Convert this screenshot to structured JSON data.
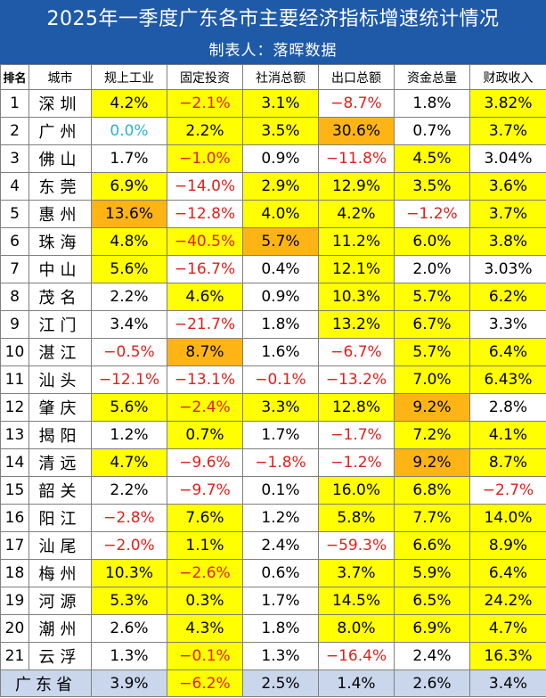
{
  "title": "2025年一季度广东各市主要经济指标增速统计情况",
  "subtitle": "制表人：落晖数据",
  "colors": {
    "banner": "#1f5aa8",
    "highlight_yellow": "#ffff00",
    "highlight_orange": "#ffb415",
    "negative_text": "#e0201b",
    "zero_text": "#2bb3cc",
    "province_row": "#c9d6ec"
  },
  "headers": [
    "排名",
    "城市",
    "规上工业",
    "固定投资",
    "社消总额",
    "出口总额",
    "资金总量",
    "财政收入"
  ],
  "rows": [
    {
      "rank": "1",
      "city": "深圳",
      "cells": [
        {
          "v": "4.2%",
          "bg": "y"
        },
        {
          "v": "−2.1%",
          "bg": "y",
          "neg": true
        },
        {
          "v": "3.1%",
          "bg": "y"
        },
        {
          "v": "−8.7%",
          "bg": "",
          "neg": true
        },
        {
          "v": "1.8%",
          "bg": ""
        },
        {
          "v": "3.82%",
          "bg": "y"
        }
      ]
    },
    {
      "rank": "2",
      "city": "广州",
      "cells": [
        {
          "v": "0.0%",
          "bg": "",
          "cyan": true
        },
        {
          "v": "2.2%",
          "bg": "y"
        },
        {
          "v": "3.5%",
          "bg": "y"
        },
        {
          "v": "30.6%",
          "bg": "o"
        },
        {
          "v": "0.7%",
          "bg": ""
        },
        {
          "v": "3.7%",
          "bg": "y"
        }
      ]
    },
    {
      "rank": "3",
      "city": "佛山",
      "cells": [
        {
          "v": "1.7%",
          "bg": ""
        },
        {
          "v": "−1.0%",
          "bg": "y",
          "neg": true
        },
        {
          "v": "0.9%",
          "bg": ""
        },
        {
          "v": "−11.8%",
          "bg": "",
          "neg": true
        },
        {
          "v": "4.5%",
          "bg": "y"
        },
        {
          "v": "3.04%",
          "bg": ""
        }
      ]
    },
    {
      "rank": "4",
      "city": "东莞",
      "cells": [
        {
          "v": "6.9%",
          "bg": "y"
        },
        {
          "v": "−14.0%",
          "bg": "",
          "neg": true
        },
        {
          "v": "2.9%",
          "bg": "y"
        },
        {
          "v": "12.9%",
          "bg": "y"
        },
        {
          "v": "3.5%",
          "bg": "y"
        },
        {
          "v": "3.6%",
          "bg": "y"
        }
      ]
    },
    {
      "rank": "5",
      "city": "惠州",
      "cells": [
        {
          "v": "13.6%",
          "bg": "o"
        },
        {
          "v": "−12.8%",
          "bg": "",
          "neg": true
        },
        {
          "v": "4.0%",
          "bg": "y"
        },
        {
          "v": "4.2%",
          "bg": "y"
        },
        {
          "v": "−1.2%",
          "bg": "",
          "neg": true
        },
        {
          "v": "3.7%",
          "bg": "y"
        }
      ]
    },
    {
      "rank": "6",
      "city": "珠海",
      "cells": [
        {
          "v": "4.8%",
          "bg": "y"
        },
        {
          "v": "−40.5%",
          "bg": "y",
          "neg": true
        },
        {
          "v": "5.7%",
          "bg": "o"
        },
        {
          "v": "11.2%",
          "bg": "y"
        },
        {
          "v": "6.0%",
          "bg": "y"
        },
        {
          "v": "3.8%",
          "bg": "y"
        }
      ]
    },
    {
      "rank": "7",
      "city": "中山",
      "cells": [
        {
          "v": "5.6%",
          "bg": "y"
        },
        {
          "v": "−16.7%",
          "bg": "",
          "neg": true
        },
        {
          "v": "0.4%",
          "bg": ""
        },
        {
          "v": "12.1%",
          "bg": "y"
        },
        {
          "v": "2.0%",
          "bg": ""
        },
        {
          "v": "3.03%",
          "bg": ""
        }
      ]
    },
    {
      "rank": "8",
      "city": "茂名",
      "cells": [
        {
          "v": "2.2%",
          "bg": ""
        },
        {
          "v": "4.6%",
          "bg": "y"
        },
        {
          "v": "0.9%",
          "bg": ""
        },
        {
          "v": "10.3%",
          "bg": "y"
        },
        {
          "v": "5.7%",
          "bg": "y"
        },
        {
          "v": "6.2%",
          "bg": "y"
        }
      ]
    },
    {
      "rank": "9",
      "city": "江门",
      "cells": [
        {
          "v": "3.4%",
          "bg": ""
        },
        {
          "v": "−21.7%",
          "bg": "",
          "neg": true
        },
        {
          "v": "1.8%",
          "bg": ""
        },
        {
          "v": "13.2%",
          "bg": "y"
        },
        {
          "v": "6.7%",
          "bg": "y"
        },
        {
          "v": "3.3%",
          "bg": ""
        }
      ]
    },
    {
      "rank": "10",
      "city": "湛江",
      "cells": [
        {
          "v": "−0.5%",
          "bg": "",
          "neg": true
        },
        {
          "v": "8.7%",
          "bg": "o"
        },
        {
          "v": "1.6%",
          "bg": ""
        },
        {
          "v": "−6.7%",
          "bg": "",
          "neg": true
        },
        {
          "v": "5.7%",
          "bg": "y"
        },
        {
          "v": "6.4%",
          "bg": "y"
        }
      ]
    },
    {
      "rank": "11",
      "city": "汕头",
      "cells": [
        {
          "v": "−12.1%",
          "bg": "",
          "neg": true
        },
        {
          "v": "−13.1%",
          "bg": "",
          "neg": true
        },
        {
          "v": "−0.1%",
          "bg": "",
          "neg": true
        },
        {
          "v": "−13.2%",
          "bg": "",
          "neg": true
        },
        {
          "v": "7.0%",
          "bg": "y"
        },
        {
          "v": "6.43%",
          "bg": "y"
        }
      ]
    },
    {
      "rank": "12",
      "city": "肇庆",
      "cells": [
        {
          "v": "5.6%",
          "bg": "y"
        },
        {
          "v": "−2.4%",
          "bg": "y",
          "neg": true
        },
        {
          "v": "3.3%",
          "bg": "y"
        },
        {
          "v": "12.8%",
          "bg": "y"
        },
        {
          "v": "9.2%",
          "bg": "o"
        },
        {
          "v": "2.8%",
          "bg": ""
        }
      ]
    },
    {
      "rank": "13",
      "city": "揭阳",
      "cells": [
        {
          "v": "1.2%",
          "bg": ""
        },
        {
          "v": "0.7%",
          "bg": "y"
        },
        {
          "v": "1.7%",
          "bg": ""
        },
        {
          "v": "−1.7%",
          "bg": "",
          "neg": true
        },
        {
          "v": "7.2%",
          "bg": "y"
        },
        {
          "v": "4.1%",
          "bg": "y"
        }
      ]
    },
    {
      "rank": "14",
      "city": "清远",
      "cells": [
        {
          "v": "4.7%",
          "bg": "y"
        },
        {
          "v": "−9.6%",
          "bg": "",
          "neg": true
        },
        {
          "v": "−1.8%",
          "bg": "",
          "neg": true
        },
        {
          "v": "−1.2%",
          "bg": "",
          "neg": true
        },
        {
          "v": "9.2%",
          "bg": "o"
        },
        {
          "v": "8.7%",
          "bg": "y"
        }
      ]
    },
    {
      "rank": "15",
      "city": "韶关",
      "cells": [
        {
          "v": "2.2%",
          "bg": ""
        },
        {
          "v": "−9.7%",
          "bg": "",
          "neg": true
        },
        {
          "v": "0.1%",
          "bg": ""
        },
        {
          "v": "16.0%",
          "bg": "y"
        },
        {
          "v": "6.8%",
          "bg": "y"
        },
        {
          "v": "−2.7%",
          "bg": "",
          "neg": true
        }
      ]
    },
    {
      "rank": "16",
      "city": "阳江",
      "cells": [
        {
          "v": "−2.8%",
          "bg": "",
          "neg": true
        },
        {
          "v": "7.6%",
          "bg": "y"
        },
        {
          "v": "1.2%",
          "bg": ""
        },
        {
          "v": "5.8%",
          "bg": "y"
        },
        {
          "v": "7.7%",
          "bg": "y"
        },
        {
          "v": "14.0%",
          "bg": "y"
        }
      ]
    },
    {
      "rank": "17",
      "city": "汕尾",
      "cells": [
        {
          "v": "−2.0%",
          "bg": "",
          "neg": true
        },
        {
          "v": "1.1%",
          "bg": "y"
        },
        {
          "v": "2.4%",
          "bg": ""
        },
        {
          "v": "−59.3%",
          "bg": "",
          "neg": true
        },
        {
          "v": "6.6%",
          "bg": "y"
        },
        {
          "v": "8.9%",
          "bg": "y"
        }
      ]
    },
    {
      "rank": "18",
      "city": "梅州",
      "cells": [
        {
          "v": "10.3%",
          "bg": "y"
        },
        {
          "v": "−2.6%",
          "bg": "y",
          "neg": true
        },
        {
          "v": "0.6%",
          "bg": ""
        },
        {
          "v": "3.7%",
          "bg": "y"
        },
        {
          "v": "5.9%",
          "bg": "y"
        },
        {
          "v": "6.4%",
          "bg": "y"
        }
      ]
    },
    {
      "rank": "19",
      "city": "河源",
      "cells": [
        {
          "v": "5.3%",
          "bg": "y"
        },
        {
          "v": "0.3%",
          "bg": "y"
        },
        {
          "v": "1.7%",
          "bg": ""
        },
        {
          "v": "14.5%",
          "bg": "y"
        },
        {
          "v": "6.5%",
          "bg": "y"
        },
        {
          "v": "24.2%",
          "bg": "y"
        }
      ]
    },
    {
      "rank": "20",
      "city": "潮州",
      "cells": [
        {
          "v": "2.6%",
          "bg": ""
        },
        {
          "v": "4.3%",
          "bg": "y"
        },
        {
          "v": "1.8%",
          "bg": ""
        },
        {
          "v": "8.0%",
          "bg": "y"
        },
        {
          "v": "6.9%",
          "bg": "y"
        },
        {
          "v": "4.7%",
          "bg": "y"
        }
      ]
    },
    {
      "rank": "21",
      "city": "云浮",
      "cells": [
        {
          "v": "1.3%",
          "bg": ""
        },
        {
          "v": "−0.1%",
          "bg": "y",
          "neg": true
        },
        {
          "v": "1.3%",
          "bg": ""
        },
        {
          "v": "−16.4%",
          "bg": "",
          "neg": true
        },
        {
          "v": "2.4%",
          "bg": ""
        },
        {
          "v": "16.3%",
          "bg": "y"
        }
      ]
    }
  ],
  "province": {
    "name": "广东省",
    "cells": [
      {
        "v": "3.9%",
        "bg": ""
      },
      {
        "v": "−6.2%",
        "bg": "y",
        "neg": true
      },
      {
        "v": "2.5%",
        "bg": ""
      },
      {
        "v": "1.4%",
        "bg": ""
      },
      {
        "v": "2.6%",
        "bg": ""
      },
      {
        "v": "3.4%",
        "bg": ""
      }
    ]
  }
}
